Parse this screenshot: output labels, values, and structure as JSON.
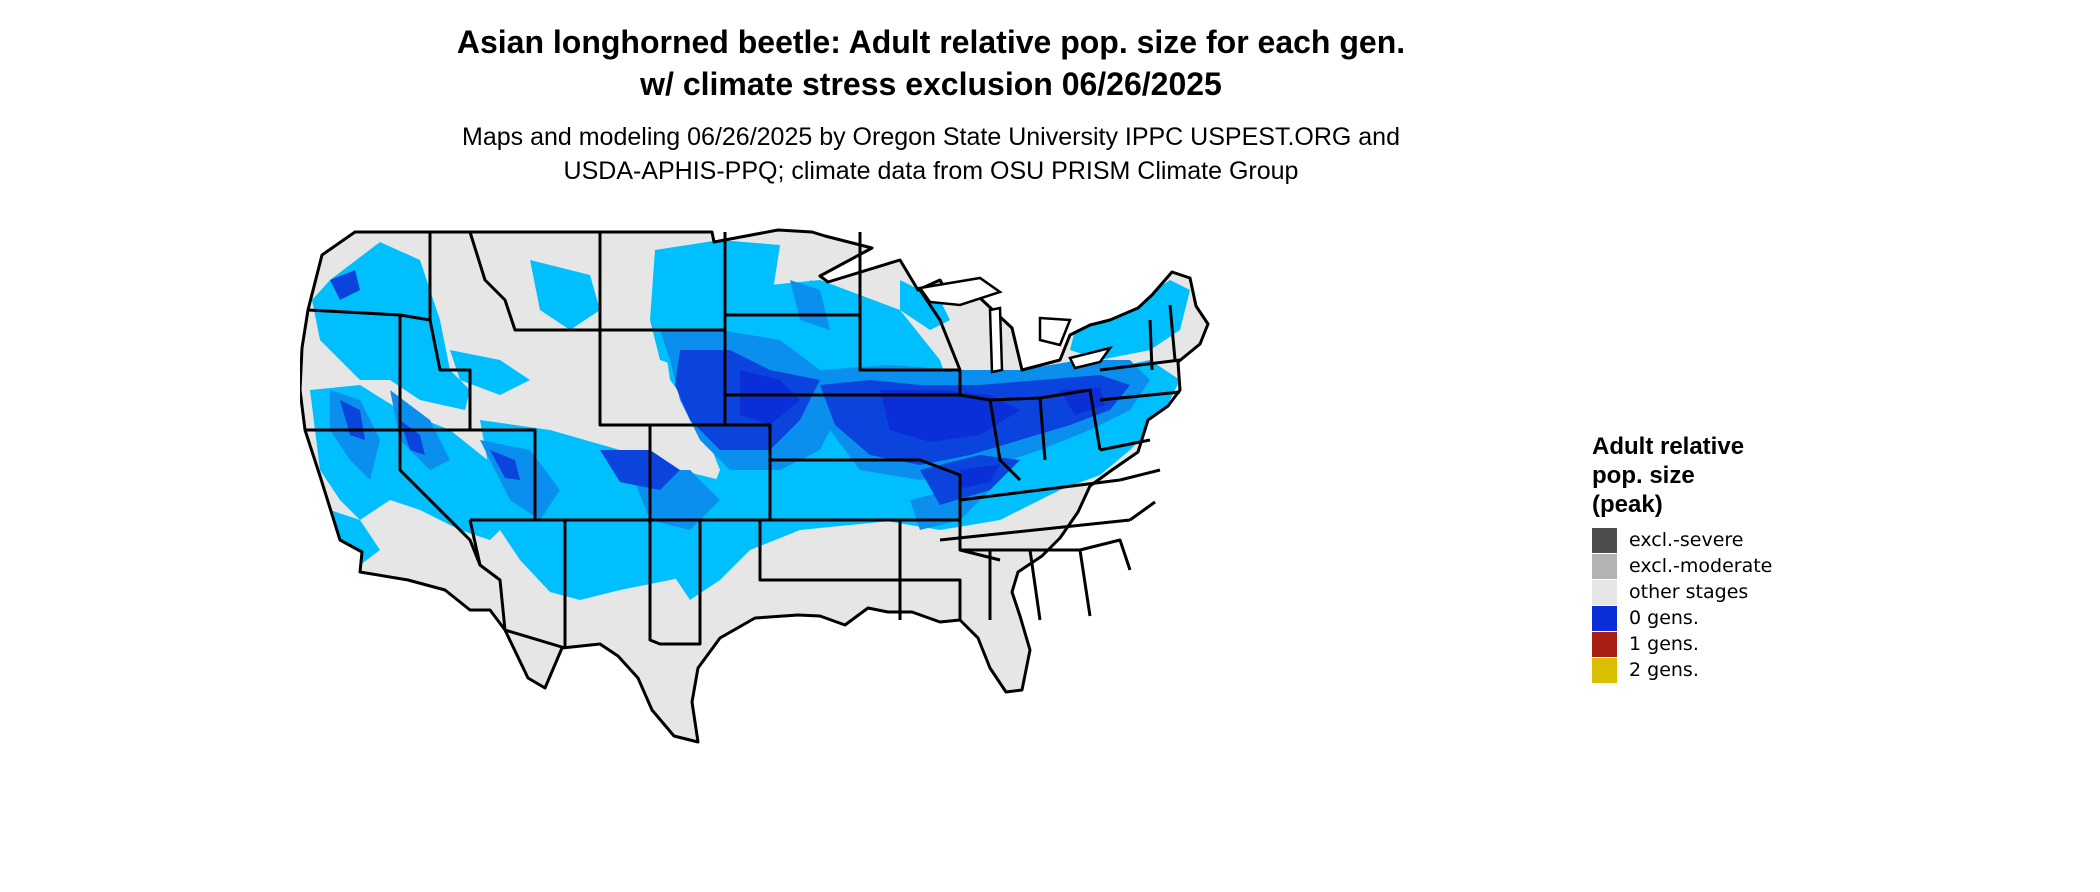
{
  "title": {
    "line1": "Asian longhorned beetle: Adult relative pop. size for each gen.",
    "line2": "w/ climate stress exclusion 06/26/2025"
  },
  "subtitle": {
    "line1": "Maps and modeling 06/26/2025 by Oregon State University IPPC USPEST.ORG and",
    "line2": "USDA-APHIS-PPQ; climate data from OSU PRISM Climate Group"
  },
  "legend": {
    "title_line1": "Adult relative",
    "title_line2": "pop. size",
    "title_line3": "(peak)",
    "items": [
      {
        "label": "excl.-severe",
        "color": "#4d4d4d"
      },
      {
        "label": "excl.-moderate",
        "color": "#b3b3b3"
      },
      {
        "label": "other stages",
        "color": "#e6e6e6"
      },
      {
        "label": "0 gens.",
        "color": "#0a2ed8"
      },
      {
        "label": "1 gens.",
        "color": "#a81d14"
      },
      {
        "label": "2 gens.",
        "color": "#d9bf00"
      }
    ]
  },
  "map": {
    "region": "contiguous United States",
    "colors": {
      "land_base": "#e6e6e6",
      "light_blue": "#00bfff",
      "mid_blue": "#0a8fee",
      "dark_blue": "#0a44dd",
      "darkest_blue": "#0a2ed8",
      "border": "#000000"
    }
  }
}
